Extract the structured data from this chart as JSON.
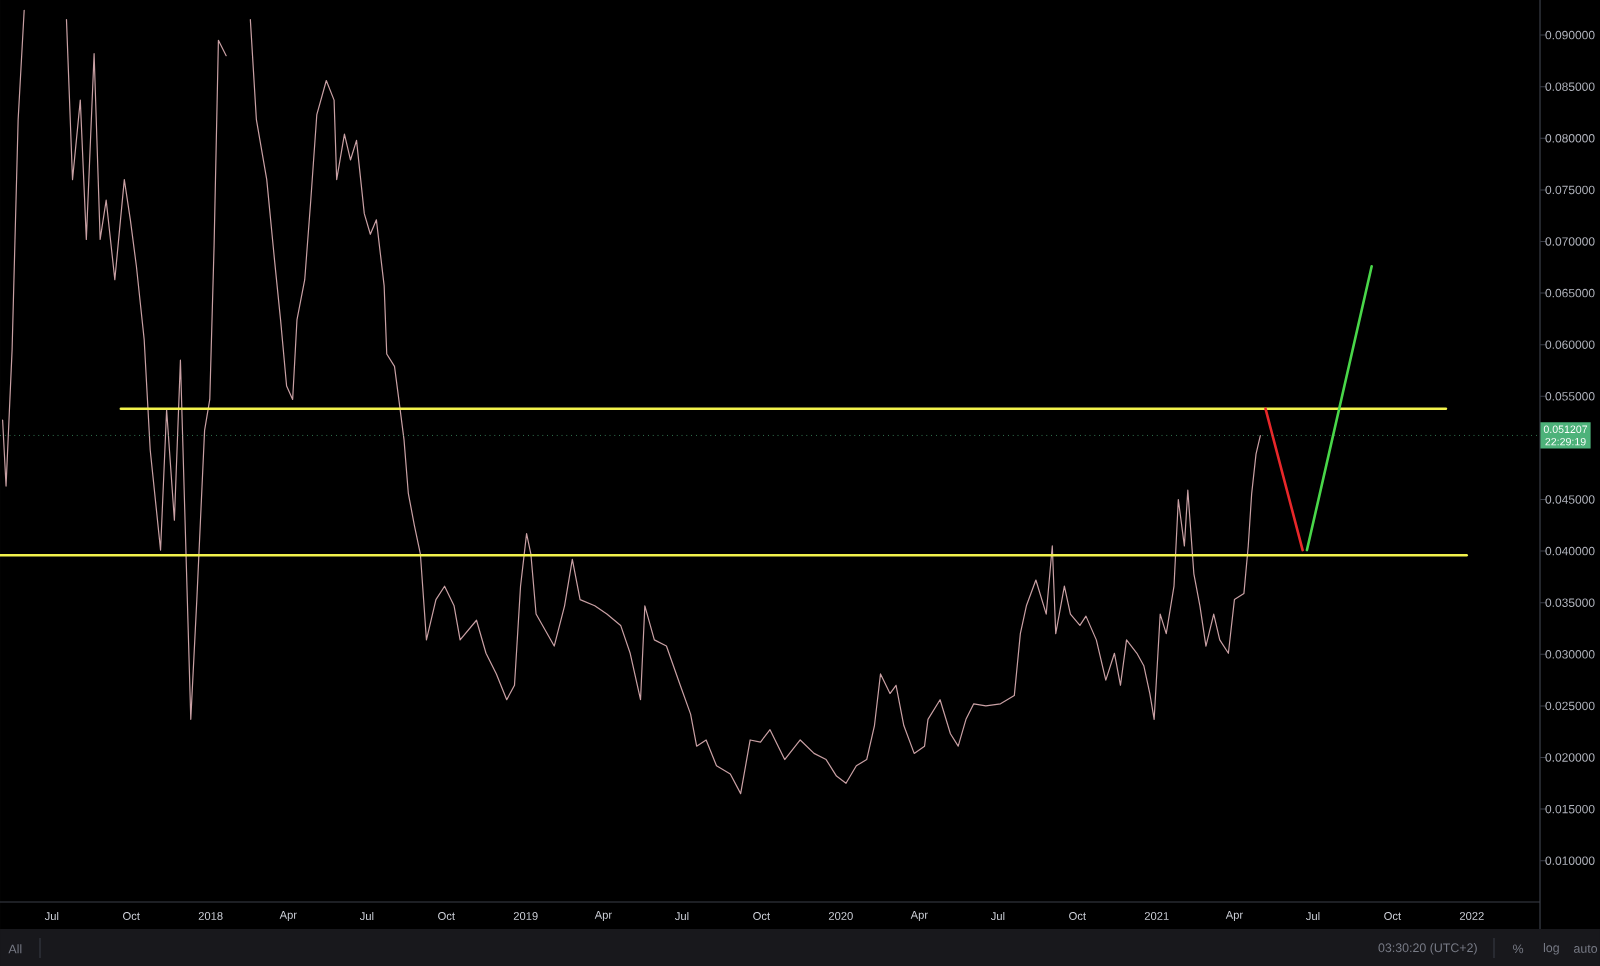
{
  "chart_data": {
    "type": "line",
    "xlim": [
      "2017-05-02",
      "2022-03-21"
    ],
    "ylim": [
      0.006,
      0.0934
    ],
    "xticks": [
      {
        "value": "2017-07-01",
        "label": "Jul"
      },
      {
        "value": "2017-10-01",
        "label": "Oct"
      },
      {
        "value": "2018-01-01",
        "label": "2018"
      },
      {
        "value": "2018-04-01",
        "label": "Apr"
      },
      {
        "value": "2018-07-01",
        "label": "Jul"
      },
      {
        "value": "2018-10-01",
        "label": "Oct"
      },
      {
        "value": "2019-01-01",
        "label": "2019"
      },
      {
        "value": "2019-04-01",
        "label": "Apr"
      },
      {
        "value": "2019-07-01",
        "label": "Jul"
      },
      {
        "value": "2019-10-01",
        "label": "Oct"
      },
      {
        "value": "2020-01-01",
        "label": "2020"
      },
      {
        "value": "2020-04-01",
        "label": "Apr"
      },
      {
        "value": "2020-07-01",
        "label": "Jul"
      },
      {
        "value": "2020-10-01",
        "label": "Oct"
      },
      {
        "value": "2021-01-01",
        "label": "2021"
      },
      {
        "value": "2021-04-01",
        "label": "Apr"
      },
      {
        "value": "2021-07-01",
        "label": "Jul"
      },
      {
        "value": "2021-10-01",
        "label": "Oct"
      },
      {
        "value": "2022-01-01",
        "label": "2022"
      }
    ],
    "yticks": [
      {
        "value": 0.01,
        "label": "0.010000"
      },
      {
        "value": 0.015,
        "label": "0.015000"
      },
      {
        "value": 0.02,
        "label": "0.020000"
      },
      {
        "value": 0.025,
        "label": "0.025000"
      },
      {
        "value": 0.03,
        "label": "0.030000"
      },
      {
        "value": 0.035,
        "label": "0.035000"
      },
      {
        "value": 0.04,
        "label": "0.040000"
      },
      {
        "value": 0.045,
        "label": "0.045000"
      },
      {
        "value": 0.055,
        "label": "0.055000"
      },
      {
        "value": 0.06,
        "label": "0.060000"
      },
      {
        "value": 0.065,
        "label": "0.065000"
      },
      {
        "value": 0.07,
        "label": "0.070000"
      },
      {
        "value": 0.075,
        "label": "0.075000"
      },
      {
        "value": 0.08,
        "label": "0.080000"
      },
      {
        "value": 0.085,
        "label": "0.085000"
      },
      {
        "value": 0.09,
        "label": "0.090000"
      }
    ],
    "series": [
      {
        "color": "#c9a0a4",
        "x": [
          "2017-05-05",
          "2017-05-09",
          "2017-05-16",
          "2017-05-23",
          "2017-05-30",
          "2017-06-18",
          "2017-07-18",
          "2017-07-25",
          "2017-08-03",
          "2017-08-10",
          "2017-08-19",
          "2017-08-26",
          "2017-09-02",
          "2017-09-12",
          "2017-09-23",
          "2017-09-30",
          "2017-10-07",
          "2017-10-16",
          "2017-10-23",
          "2017-11-04",
          "2017-11-11",
          "2017-11-20",
          "2017-11-27",
          "2017-12-09",
          "2017-12-16",
          "2017-12-25",
          "2017-12-31",
          "2018-01-05",
          "2018-01-10",
          "2018-01-19",
          "2018-02-02",
          "2018-02-16",
          "2018-02-23",
          "2018-03-07",
          "2018-03-16",
          "2018-03-23",
          "2018-03-30",
          "2018-04-06",
          "2018-04-11",
          "2018-04-20",
          "2018-04-27",
          "2018-05-04",
          "2018-05-15",
          "2018-05-24",
          "2018-05-27",
          "2018-06-05",
          "2018-06-12",
          "2018-06-19",
          "2018-06-28",
          "2018-07-05",
          "2018-07-12",
          "2018-07-21",
          "2018-07-24",
          "2018-08-02",
          "2018-08-07",
          "2018-08-13",
          "2018-08-18",
          "2018-08-25",
          "2018-09-01",
          "2018-09-08",
          "2018-09-19",
          "2018-09-29",
          "2018-10-10",
          "2018-10-17",
          "2018-11-05",
          "2018-11-16",
          "2018-11-28",
          "2018-12-10",
          "2018-12-19",
          "2018-12-26",
          "2019-01-02",
          "2019-01-07",
          "2019-01-13",
          "2019-02-03",
          "2019-02-15",
          "2019-02-24",
          "2019-03-05",
          "2019-03-22",
          "2019-04-05",
          "2019-04-21",
          "2019-05-02",
          "2019-05-14",
          "2019-05-19",
          "2019-05-30",
          "2019-06-13",
          "2019-06-29",
          "2019-07-11",
          "2019-07-18",
          "2019-07-29",
          "2019-08-10",
          "2019-08-26",
          "2019-09-07",
          "2019-09-18",
          "2019-09-30",
          "2019-10-11",
          "2019-10-28",
          "2019-11-15",
          "2019-12-01",
          "2019-12-15",
          "2019-12-27",
          "2020-01-07",
          "2020-01-19",
          "2020-01-31",
          "2020-02-09",
          "2020-02-16",
          "2020-02-27",
          "2020-03-05",
          "2020-03-14",
          "2020-03-26",
          "2020-04-07",
          "2020-04-11",
          "2020-04-25",
          "2020-05-07",
          "2020-05-16",
          "2020-05-25",
          "2020-06-03",
          "2020-06-17",
          "2020-07-04",
          "2020-07-20",
          "2020-07-27",
          "2020-08-03",
          "2020-08-14",
          "2020-08-26",
          "2020-09-02",
          "2020-09-06",
          "2020-09-16",
          "2020-09-23",
          "2020-10-04",
          "2020-10-11",
          "2020-10-23",
          "2020-11-03",
          "2020-11-13",
          "2020-11-20",
          "2020-11-27",
          "2020-12-09",
          "2020-12-17",
          "2020-12-24",
          "2020-12-29",
          "2021-01-05",
          "2021-01-12",
          "2021-01-21",
          "2021-01-26",
          "2021-02-02",
          "2021-02-06",
          "2021-02-13",
          "2021-02-20",
          "2021-02-27",
          "2021-03-08",
          "2021-03-15",
          "2021-03-25",
          "2021-04-01",
          "2021-04-12",
          "2021-04-17",
          "2021-04-21",
          "2021-04-26",
          "2021-05-01"
        ],
        "values": [
          0.0527,
          0.0463,
          0.0595,
          0.0818,
          0.0924,
          null,
          0.0915,
          0.076,
          0.0837,
          0.0702,
          0.0882,
          0.0702,
          0.074,
          0.0663,
          0.076,
          0.0721,
          0.0676,
          0.0605,
          0.0498,
          0.0401,
          0.0537,
          0.043,
          0.0585,
          0.0237,
          0.0353,
          0.0517,
          0.0547,
          0.0696,
          0.0895,
          0.088,
          null,
          0.0915,
          0.0818,
          0.076,
          0.0682,
          0.0624,
          0.056,
          0.0547,
          0.0624,
          0.0663,
          0.074,
          0.0823,
          0.0856,
          0.0837,
          0.076,
          0.0804,
          0.0779,
          0.0798,
          0.0727,
          0.0707,
          0.0721,
          0.0657,
          0.0591,
          0.0579,
          0.0547,
          0.0508,
          0.0456,
          0.0425,
          0.0397,
          0.0314,
          0.0353,
          0.0366,
          0.0347,
          0.0314,
          0.0333,
          0.0301,
          0.0281,
          0.0256,
          0.027,
          0.0366,
          0.0417,
          0.0397,
          0.0339,
          0.0308,
          0.0347,
          0.0392,
          0.0353,
          0.0347,
          0.0339,
          0.0328,
          0.0301,
          0.0256,
          0.0347,
          0.0314,
          0.0308,
          0.027,
          0.0242,
          0.0211,
          0.0217,
          0.0192,
          0.0184,
          0.0165,
          0.0217,
          0.0215,
          0.0227,
          0.0198,
          0.0217,
          0.0204,
          0.0198,
          0.0182,
          0.0175,
          0.0192,
          0.0198,
          0.0231,
          0.0281,
          0.0262,
          0.027,
          0.0231,
          0.0204,
          0.0211,
          0.0237,
          0.0256,
          0.0223,
          0.0211,
          0.0237,
          0.0252,
          0.025,
          0.0252,
          0.026,
          0.032,
          0.0347,
          0.0372,
          0.0339,
          0.0405,
          0.032,
          0.0366,
          0.0339,
          0.0328,
          0.0337,
          0.0314,
          0.0275,
          0.0301,
          0.027,
          0.0314,
          0.0301,
          0.0289,
          0.0262,
          0.0237,
          0.0339,
          0.032,
          0.0366,
          0.045,
          0.0405,
          0.0459,
          0.0378,
          0.0347,
          0.0308,
          0.0339,
          0.0314,
          0.0301,
          0.0353,
          0.0359,
          0.0405,
          0.0456,
          0.0494,
          0.0512
        ]
      },
      {
        "color": "#f2f24c",
        "x": [
          "2017-09-19",
          "2021-12-02"
        ],
        "values": [
          0.0538,
          0.0538
        ]
      },
      {
        "color": "#f2f24c",
        "x": [
          "2017-05-02",
          "2021-12-26"
        ],
        "values": [
          0.0396,
          0.0396
        ]
      },
      {
        "color": "#e8272a",
        "x": [
          "2021-05-07",
          "2021-06-19"
        ],
        "values": [
          0.0538,
          0.0401
        ]
      },
      {
        "color": "#49d649",
        "x": [
          "2021-06-24",
          "2021-09-07"
        ],
        "values": [
          0.0401,
          0.0676
        ]
      }
    ],
    "ref_lines": [
      {
        "axis": "y",
        "value": 0.051207,
        "label": "0.051207",
        "color": "#4db27a",
        "line_style": "dotted"
      }
    ],
    "annotations": [
      "22:29:19",
      "All",
      "03:30:20 (UTC+2)",
      "%",
      "log",
      "auto"
    ]
  }
}
